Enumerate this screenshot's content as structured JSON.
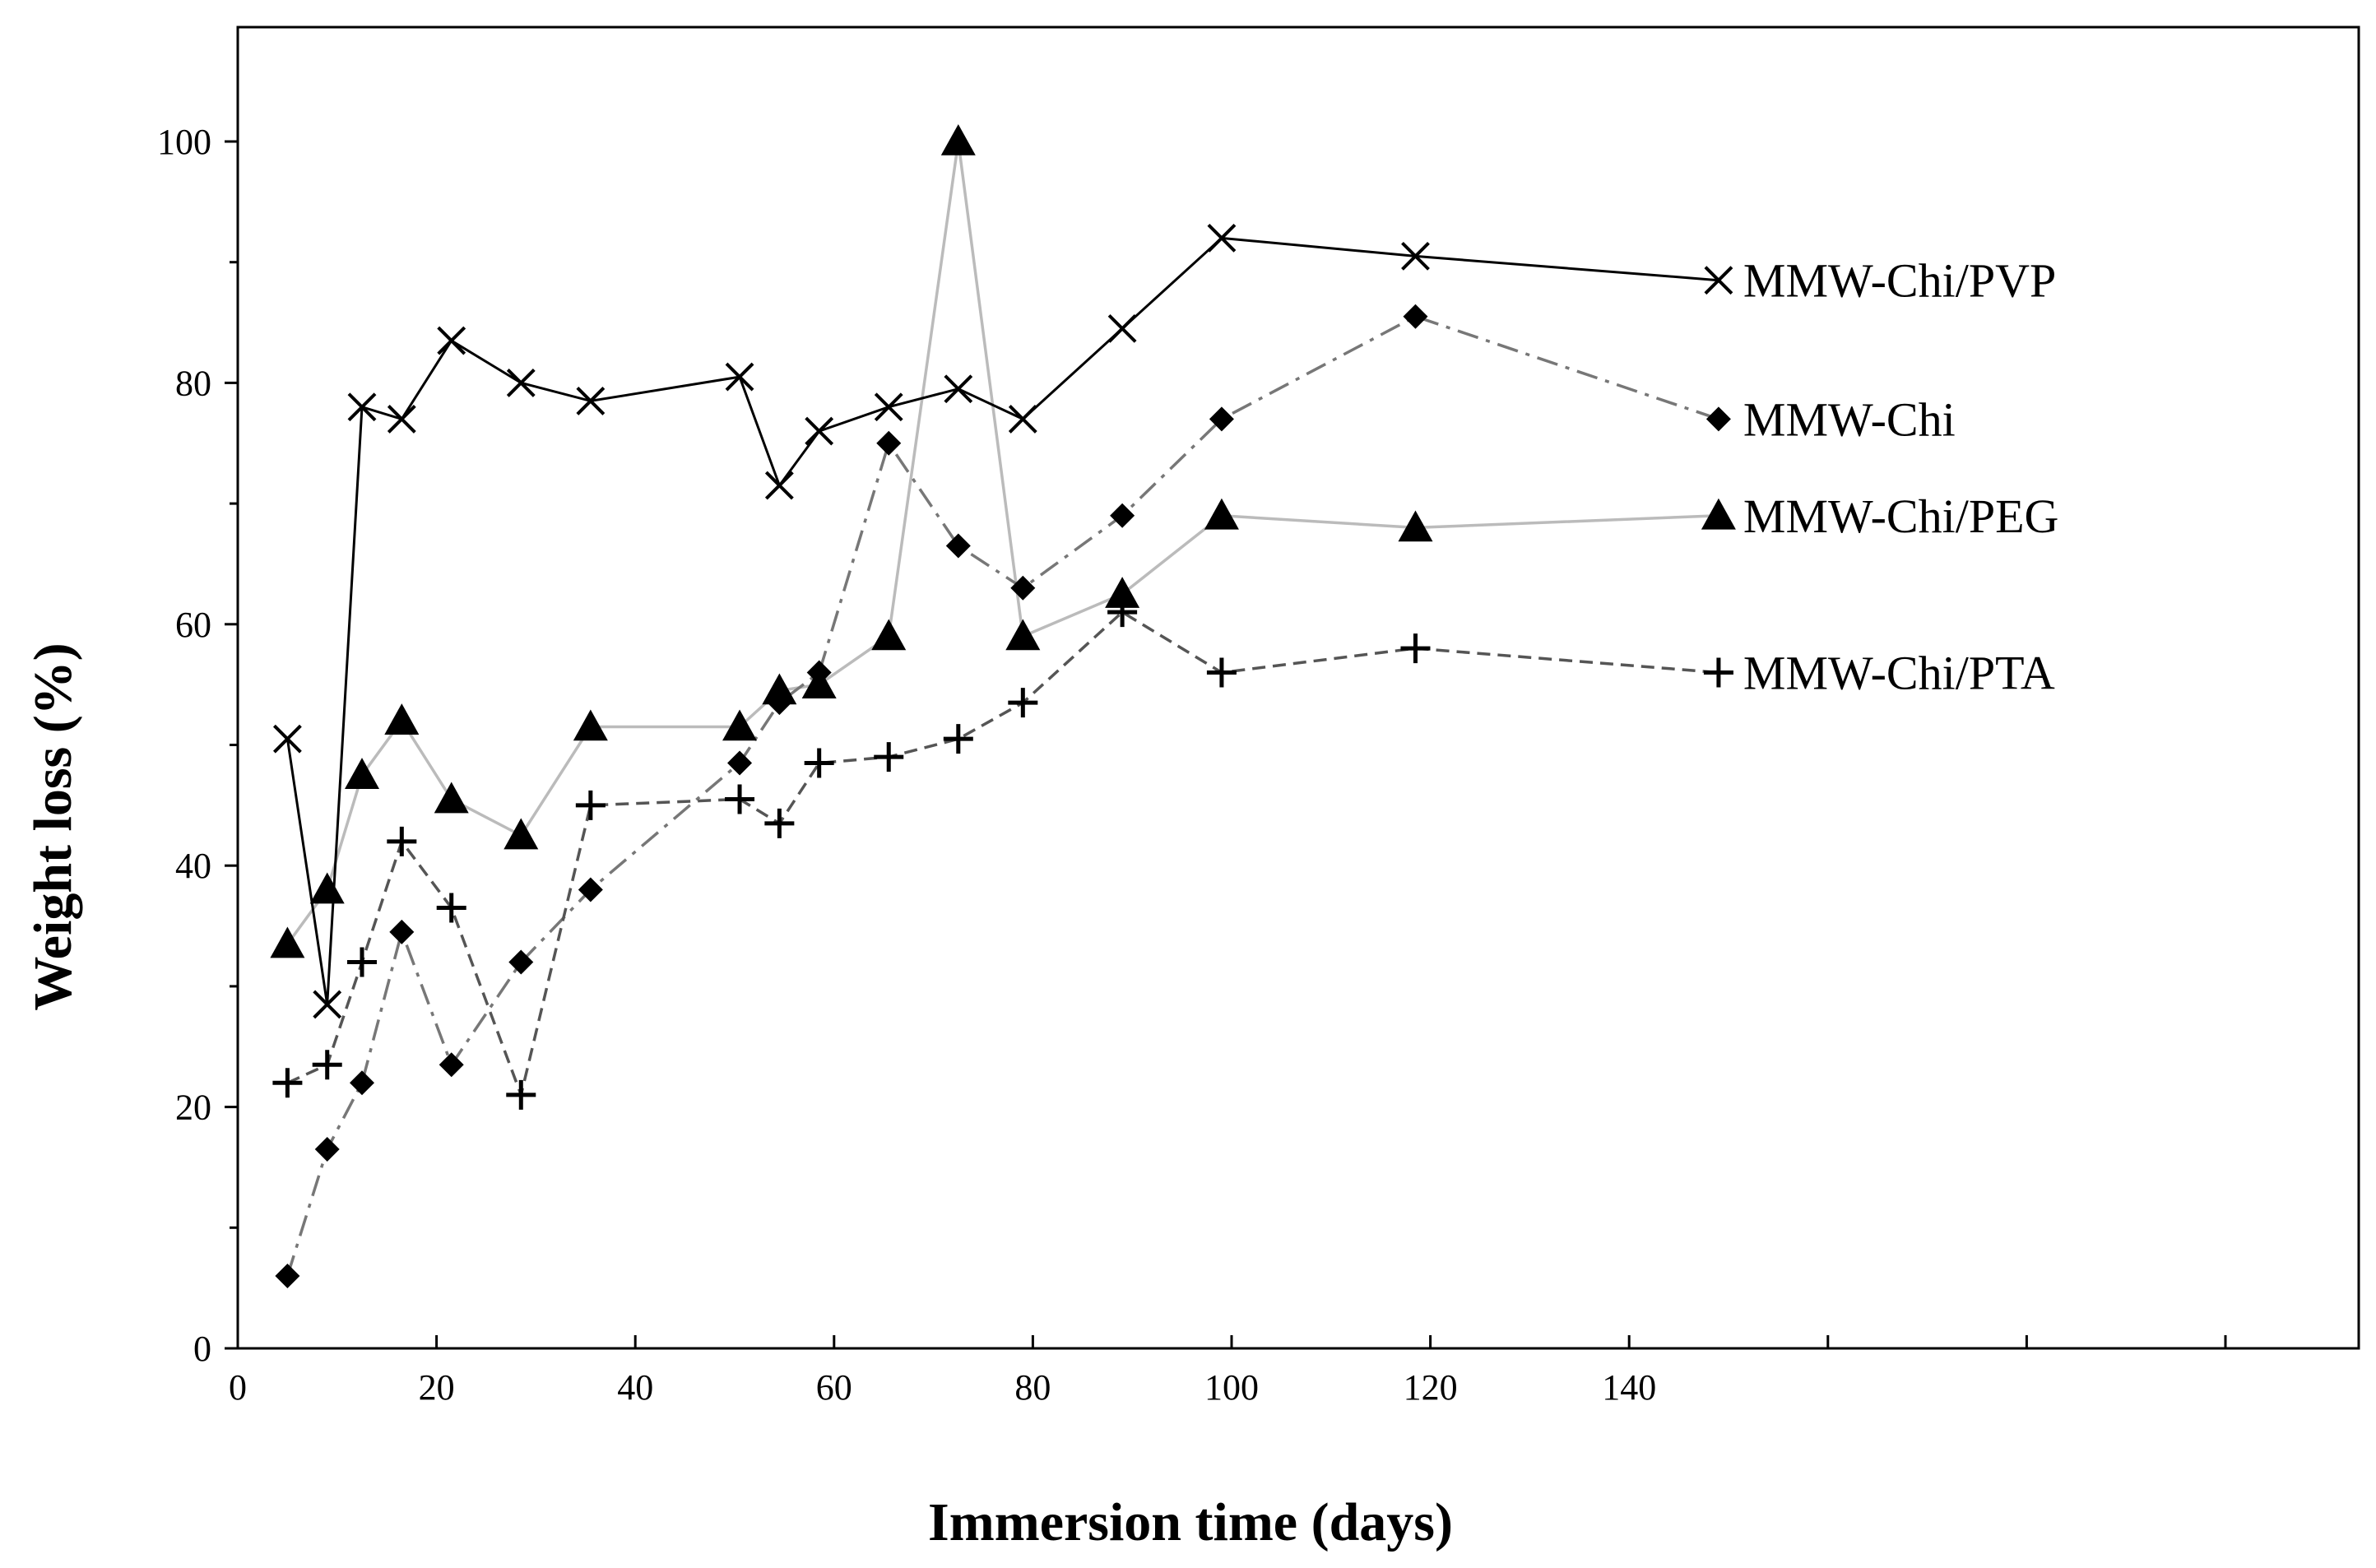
{
  "chart_data": {
    "type": "line",
    "title": "",
    "xlabel": "Immersion time (days)",
    "ylabel": "Weight loss (%)",
    "xlim": [
      0,
      140
    ],
    "ylim": [
      0,
      100
    ],
    "x_ticks": [
      "0",
      "20",
      "40",
      "60",
      "80",
      "100",
      "120",
      "140"
    ],
    "y_ticks": [
      "0",
      "20",
      "40",
      "60",
      "80",
      "100"
    ],
    "grid": false,
    "legend": "series labels at right end of each line",
    "series": [
      {
        "name": "MMW-Chi/PVP",
        "marker": "x",
        "line_style": "solid",
        "line_color": "#000000",
        "x": [
          5,
          9,
          12.5,
          16.5,
          21.5,
          28.5,
          35.5,
          50.5,
          54.5,
          58.5,
          65.5,
          72.5,
          79,
          89,
          99,
          118.5,
          149
        ],
        "y": [
          50.5,
          28.5,
          78,
          77,
          83.5,
          80,
          78.5,
          80.5,
          71.5,
          76,
          78,
          79.5,
          77,
          84.5,
          92,
          90.5,
          88.5
        ]
      },
      {
        "name": "MMW-Chi",
        "marker": "diamond",
        "line_style": "dash-dot",
        "line_color": "#777777",
        "x": [
          5,
          9,
          12.5,
          16.5,
          21.5,
          28.5,
          35.5,
          50.5,
          54.5,
          58.5,
          65.5,
          72.5,
          79,
          89,
          99,
          118.5,
          149
        ],
        "y": [
          6,
          16.5,
          22,
          34.5,
          23.5,
          32,
          38,
          48.5,
          53.5,
          56,
          75,
          66.5,
          63,
          69,
          77,
          85.5,
          77
        ]
      },
      {
        "name": "MMW-Chi/PEG",
        "marker": "triangle",
        "line_style": "solid",
        "line_color": "#bbbbbb",
        "x": [
          5,
          9,
          12.5,
          16.5,
          21.5,
          28.5,
          35.5,
          50.5,
          54.5,
          58.5,
          65.5,
          72.5,
          79,
          89,
          99,
          118.5,
          149
        ],
        "y": [
          33.5,
          38,
          47.5,
          52,
          45.5,
          42.5,
          51.5,
          51.5,
          54.5,
          55,
          59,
          100,
          59,
          62.5,
          69,
          68,
          69
        ]
      },
      {
        "name": "MMW-Chi/PTA",
        "marker": "plus",
        "line_style": "dashed",
        "line_color": "#555555",
        "x": [
          5,
          9,
          12.5,
          16.5,
          21.5,
          28.5,
          35.5,
          50.5,
          54.5,
          58.5,
          65.5,
          72.5,
          79,
          89,
          99,
          118.5,
          149
        ],
        "y": [
          22,
          23.5,
          32,
          42,
          36.5,
          21,
          45,
          45.5,
          43.5,
          48.5,
          49,
          50.5,
          53.5,
          61,
          56,
          58,
          56
        ]
      }
    ]
  }
}
